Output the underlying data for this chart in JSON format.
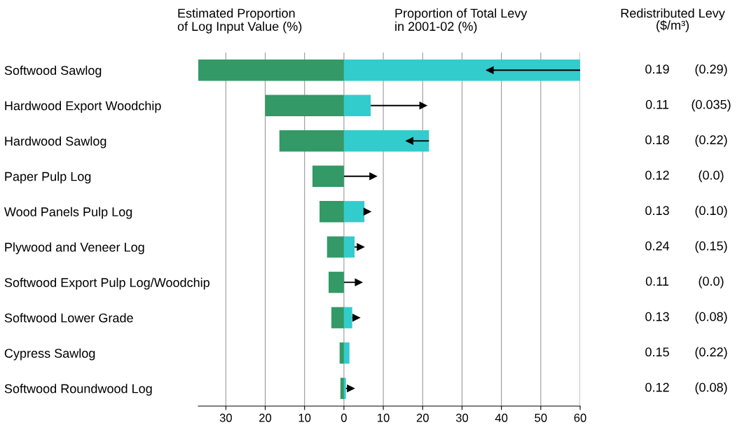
{
  "chart_data": {
    "type": "bar",
    "orientation": "horizontal",
    "categories": [
      "Softwood Sawlog",
      "Hardwood Export Woodchip",
      "Hardwood Sawlog",
      "Paper Pulp Log",
      "Wood Panels Pulp Log",
      "Plywood and Veneer Log",
      "Softwood Export Pulp Log/Woodchip",
      "Softwood Lower Grade",
      "Cypress Sawlog",
      "Softwood Roundwood Log"
    ],
    "series": [
      {
        "name": "Estimated Proportion\nof Log Input Value (%)",
        "color": "#339966",
        "values": [
          -37,
          -20,
          -16.4,
          -8,
          -6.2,
          -4.3,
          -3.9,
          -3.2,
          -1.1,
          -0.9
        ]
      },
      {
        "name": "Proportion of Total Levy\nin 2001-02 (%)",
        "color": "#33cccc",
        "values": [
          60,
          6.8,
          21.6,
          0,
          5.2,
          2.7,
          0,
          2.1,
          1.4,
          0.5
        ]
      },
      {
        "type": "scatter",
        "marker": "triangle",
        "color": "#000000",
        "values": [
          37,
          20.2,
          16.6,
          7.5,
          6,
          4.3,
          3.8,
          3.2,
          null,
          1.8
        ],
        "errors": [
          [
            37,
            60
          ],
          [
            6.8,
            20.2
          ],
          [
            16.6,
            21.6
          ],
          [
            0,
            7.5
          ],
          [
            5.2,
            6
          ],
          [
            2.7,
            4.3
          ],
          [
            0,
            3.8
          ],
          [
            2.1,
            3.2
          ],
          null,
          [
            0.5,
            1.8
          ]
        ]
      }
    ],
    "xlim": [
      -37,
      60
    ],
    "xticks": [
      {
        "value": -30,
        "label": "30"
      },
      {
        "value": -20,
        "label": "20"
      },
      {
        "value": -10,
        "label": "10"
      },
      0,
      10,
      20,
      30,
      40,
      50,
      60
    ],
    "grid": "x",
    "legend": false,
    "stacked": true,
    "annotations": [
      "Redistributed Levy\n($/m³)",
      "0.19",
      "(0.29)",
      "0.11",
      "(0.035)",
      "0.18",
      "(0.22)",
      "0.12",
      "(0.0)",
      "0.13",
      "(0.10)",
      "0.24",
      "(0.15)",
      "0.11",
      "(0.0)",
      "0.13",
      "(0.08)",
      "0.15",
      "(0.22)",
      "0.12",
      "(0.08)"
    ]
  }
}
